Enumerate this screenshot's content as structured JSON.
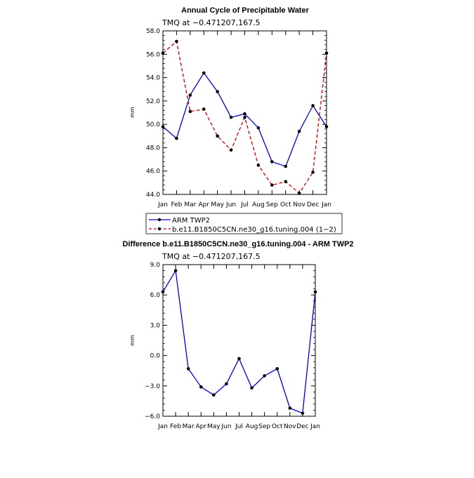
{
  "chart_data": [
    {
      "type": "line",
      "title": "Annual Cycle of Precipitable Water",
      "subtitle": "TMQ  at  −0.471207,167.5",
      "ylabel": "mm",
      "xlabel": "",
      "ylim": [
        44.0,
        58.0
      ],
      "ytick_values": [
        44,
        46,
        48,
        50,
        52,
        54,
        56,
        58
      ],
      "yticks": [
        "44.0",
        "46.0",
        "48.0",
        "50.0",
        "52.0",
        "54.0",
        "56.0",
        "58.0"
      ],
      "categories": [
        "Jan",
        "Feb",
        "Mar",
        "Apr",
        "May",
        "Jun",
        "Jul",
        "Aug",
        "Sep",
        "Oct",
        "Nov",
        "Dec",
        "Jan"
      ],
      "series": [
        {
          "name": "ARM TWP2",
          "color": "#0000cc",
          "dash": "solid",
          "values": [
            49.8,
            48.8,
            52.5,
            54.4,
            52.8,
            50.6,
            50.9,
            49.7,
            46.8,
            46.4,
            49.4,
            51.6,
            49.8
          ]
        },
        {
          "name": "b.e11.B1850C5CN.ne30_g16.tuning.004 (1−2)",
          "color": "#cc0000",
          "dash": "dashed",
          "values": [
            56.1,
            57.1,
            51.1,
            51.3,
            49.0,
            47.8,
            50.6,
            46.5,
            44.8,
            45.1,
            44.1,
            45.9,
            56.1
          ]
        }
      ],
      "legend_position": "below"
    },
    {
      "type": "line",
      "title": "Difference b.e11.B1850C5CN.ne30_g16.tuning.004 - ARM TWP2",
      "subtitle": "TMQ  at  −0.471207,167.5",
      "ylabel": "mm",
      "xlabel": "",
      "ylim": [
        -6.0,
        9.0
      ],
      "ytick_values": [
        -6,
        -3,
        0,
        3,
        6,
        9
      ],
      "yticks": [
        "−6.0",
        "−3.0",
        "0.0",
        "3.0",
        "6.0",
        "9.0"
      ],
      "categories": [
        "Jan",
        "Feb",
        "Mar",
        "Apr",
        "May",
        "Jun",
        "Jul",
        "Aug",
        "Sep",
        "Oct",
        "Nov",
        "Dec",
        "Jan"
      ],
      "series": [
        {
          "name": "Difference",
          "color": "#0000cc",
          "dash": "solid",
          "values": [
            6.3,
            8.4,
            -1.3,
            -3.1,
            -3.9,
            -2.8,
            -0.3,
            -3.2,
            -2.0,
            -1.3,
            -5.2,
            -5.7,
            6.3
          ]
        }
      ]
    }
  ]
}
